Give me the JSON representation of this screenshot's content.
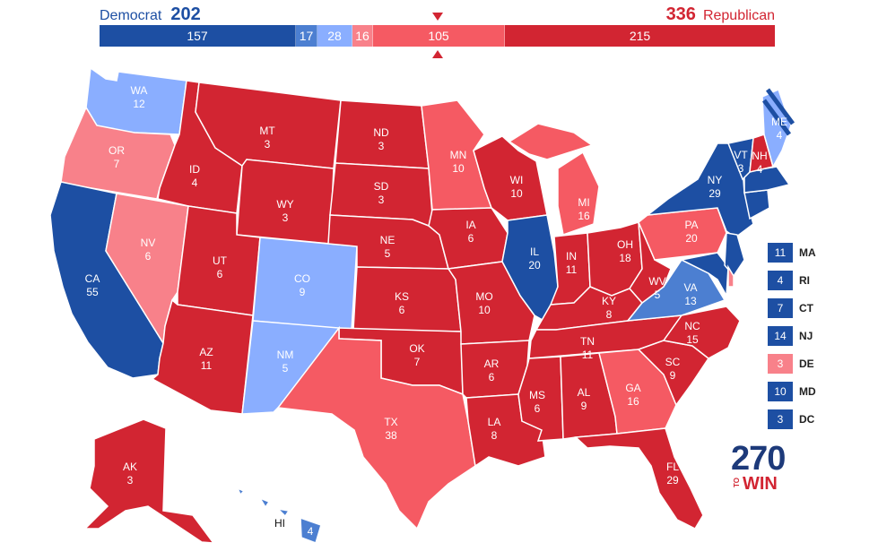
{
  "header": {
    "dem_label": "Democrat",
    "dem_total": "202",
    "rep_total": "336",
    "rep_label": "Republican"
  },
  "bar": [
    {
      "value": "157",
      "color": "#1d4fa3"
    },
    {
      "value": "17",
      "color": "#4c7fd1"
    },
    {
      "value": "28",
      "color": "#8aaeff"
    },
    {
      "value": "16",
      "color": "#f8818a"
    },
    {
      "value": "105",
      "color": "#f55a63"
    },
    {
      "value": "215",
      "color": "#d22532"
    }
  ],
  "colors": {
    "safe_dem": "#1d4fa3",
    "likely_dem": "#4c7fd1",
    "lean_dem": "#8aaeff",
    "lean_rep": "#f8818a",
    "likely_rep": "#f55a63",
    "safe_rep": "#d22532"
  },
  "states": {
    "WA": "12",
    "OR": "7",
    "CA": "55",
    "NV": "6",
    "ID": "4",
    "MT": "3",
    "WY": "3",
    "UT": "6",
    "AZ": "11",
    "CO": "9",
    "NM": "5",
    "ND": "3",
    "SD": "3",
    "NE": "5",
    "KS": "6",
    "OK": "7",
    "TX": "38",
    "MN": "10",
    "IA": "6",
    "MO": "10",
    "AR": "6",
    "LA": "8",
    "WI": "10",
    "IL": "20",
    "MI": "16",
    "IN": "11",
    "OH": "18",
    "KY": "8",
    "TN": "11",
    "MS": "6",
    "AL": "9",
    "GA": "16",
    "FL": "29",
    "SC": "9",
    "NC": "15",
    "VA": "13",
    "WV": "5",
    "PA": "20",
    "NY": "29",
    "VT": "3",
    "NH": "4",
    "ME": "4",
    "AK": "3",
    "HI": "4"
  },
  "legend": [
    {
      "votes": "11",
      "state": "MA",
      "color": "#1d4fa3"
    },
    {
      "votes": "4",
      "state": "RI",
      "color": "#1d4fa3"
    },
    {
      "votes": "7",
      "state": "CT",
      "color": "#1d4fa3"
    },
    {
      "votes": "14",
      "state": "NJ",
      "color": "#1d4fa3"
    },
    {
      "votes": "3",
      "state": "DE",
      "color": "#f8818a"
    },
    {
      "votes": "10",
      "state": "MD",
      "color": "#1d4fa3"
    },
    {
      "votes": "3",
      "state": "DC",
      "color": "#1d4fa3"
    }
  ],
  "logo": {
    "number": "270",
    "small": "TO",
    "word": "WIN"
  }
}
